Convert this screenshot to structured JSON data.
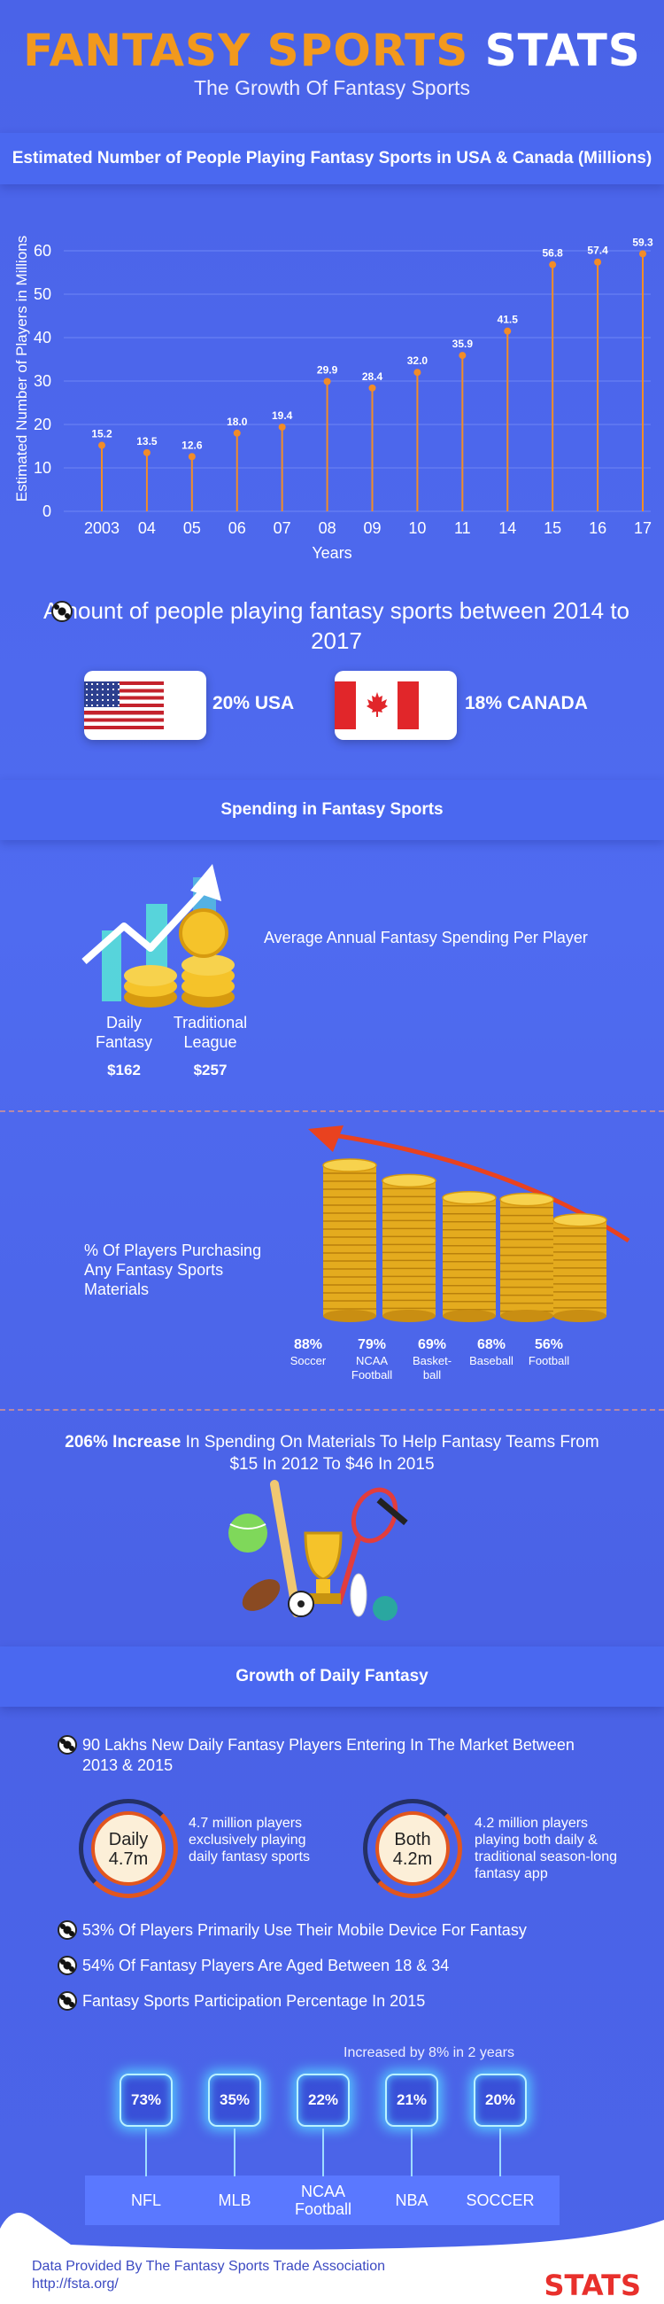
{
  "header": {
    "title_accent": "FANTASY SPORTS",
    "title_white": "STATS",
    "subtitle": "The Growth Of Fantasy Sports"
  },
  "chart_data": {
    "type": "lollipop",
    "title": "Estimated Number of People Playing Fantasy Sports in USA & Canada (Millions)",
    "xlabel": "Years",
    "ylabel": "Estimated Number of Players in Millions",
    "categories": [
      "2003",
      "04",
      "05",
      "06",
      "07",
      "08",
      "09",
      "10",
      "11",
      "14",
      "15",
      "16",
      "17"
    ],
    "values": [
      15.2,
      13.5,
      12.6,
      18.0,
      19.4,
      29.9,
      28.4,
      32.0,
      35.9,
      41.5,
      56.8,
      57.4,
      59.3
    ],
    "value_labels": [
      "15.2",
      "13.5",
      "12.6",
      "18.0",
      "19.4",
      "29.9",
      "28.4",
      "32.0",
      "35.9",
      "41.5",
      "56.8",
      "57.4",
      "59.3"
    ],
    "yticks": [
      "0",
      "10",
      "20",
      "30",
      "40",
      "50",
      "60"
    ],
    "ylim": [
      0,
      60
    ],
    "grid": true,
    "colors": {
      "marker": "#f28c28",
      "line": "#f28c28",
      "grid": "#6e86f5"
    }
  },
  "amount": {
    "heading": "Amount of people playing fantasy sports between 2014 to 2017",
    "usa": "20% USA",
    "canada": "18% CANADA"
  },
  "spending": {
    "heading": "Spending in Fantasy Sports",
    "avg_label": "Average Annual Fantasy Spending Per Player",
    "daily_label": "Daily Fantasy",
    "daily_value": "$162",
    "traditional_label": "Traditional League",
    "traditional_value": "$257"
  },
  "materials": {
    "label": "% Of Players Purchasing Any Fantasy Sports Materials",
    "chart_data": {
      "type": "bar",
      "categories": [
        "Soccer",
        "NCAA Football",
        "Basket- ball",
        "Baseball",
        "Football"
      ],
      "values": [
        88,
        79,
        69,
        68,
        56
      ],
      "value_labels": [
        "88%",
        "79%",
        "69%",
        "68%",
        "56%"
      ]
    }
  },
  "increase": {
    "bold": "206% Increase",
    "rest": "In Spending On Materials To Help Fantasy Teams From $15 In 2012 To $46 In 2015"
  },
  "daily_growth": {
    "heading": "Growth of Daily Fantasy",
    "bullet1": "90 Lakhs New Daily Fantasy Players Entering In The Market Between 2013 & 2015",
    "daily_ring_label": "Daily",
    "daily_ring_value": "4.7m",
    "daily_desc": "4.7 million players exclusively playing daily fantasy sports",
    "both_ring_label": "Both",
    "both_ring_value": "4.2m",
    "both_desc": "4.2 million players playing both daily & traditional season-long fantasy app",
    "bullet2": "53% Of Players Primarily Use Their Mobile Device For Fantasy",
    "bullet3": "54% Of Fantasy Players Are Aged Between 18 & 34",
    "bullet4": "Fantasy Sports Participation Percentage In 2015"
  },
  "participation": {
    "note": "Increased by 8% in 2 years",
    "chart_data": {
      "type": "bar",
      "categories": [
        "NFL",
        "MLB",
        "NCAA Football",
        "NBA",
        "SOCCER"
      ],
      "values": [
        73,
        35,
        22,
        21,
        20
      ],
      "value_labels": [
        "73%",
        "35%",
        "22%",
        "21%",
        "20%"
      ]
    }
  },
  "footer": {
    "source_line1": "Data Provided By The Fantasy Sports Trade Association",
    "source_line2": "http://fsta.org/",
    "logo": "STATS"
  }
}
